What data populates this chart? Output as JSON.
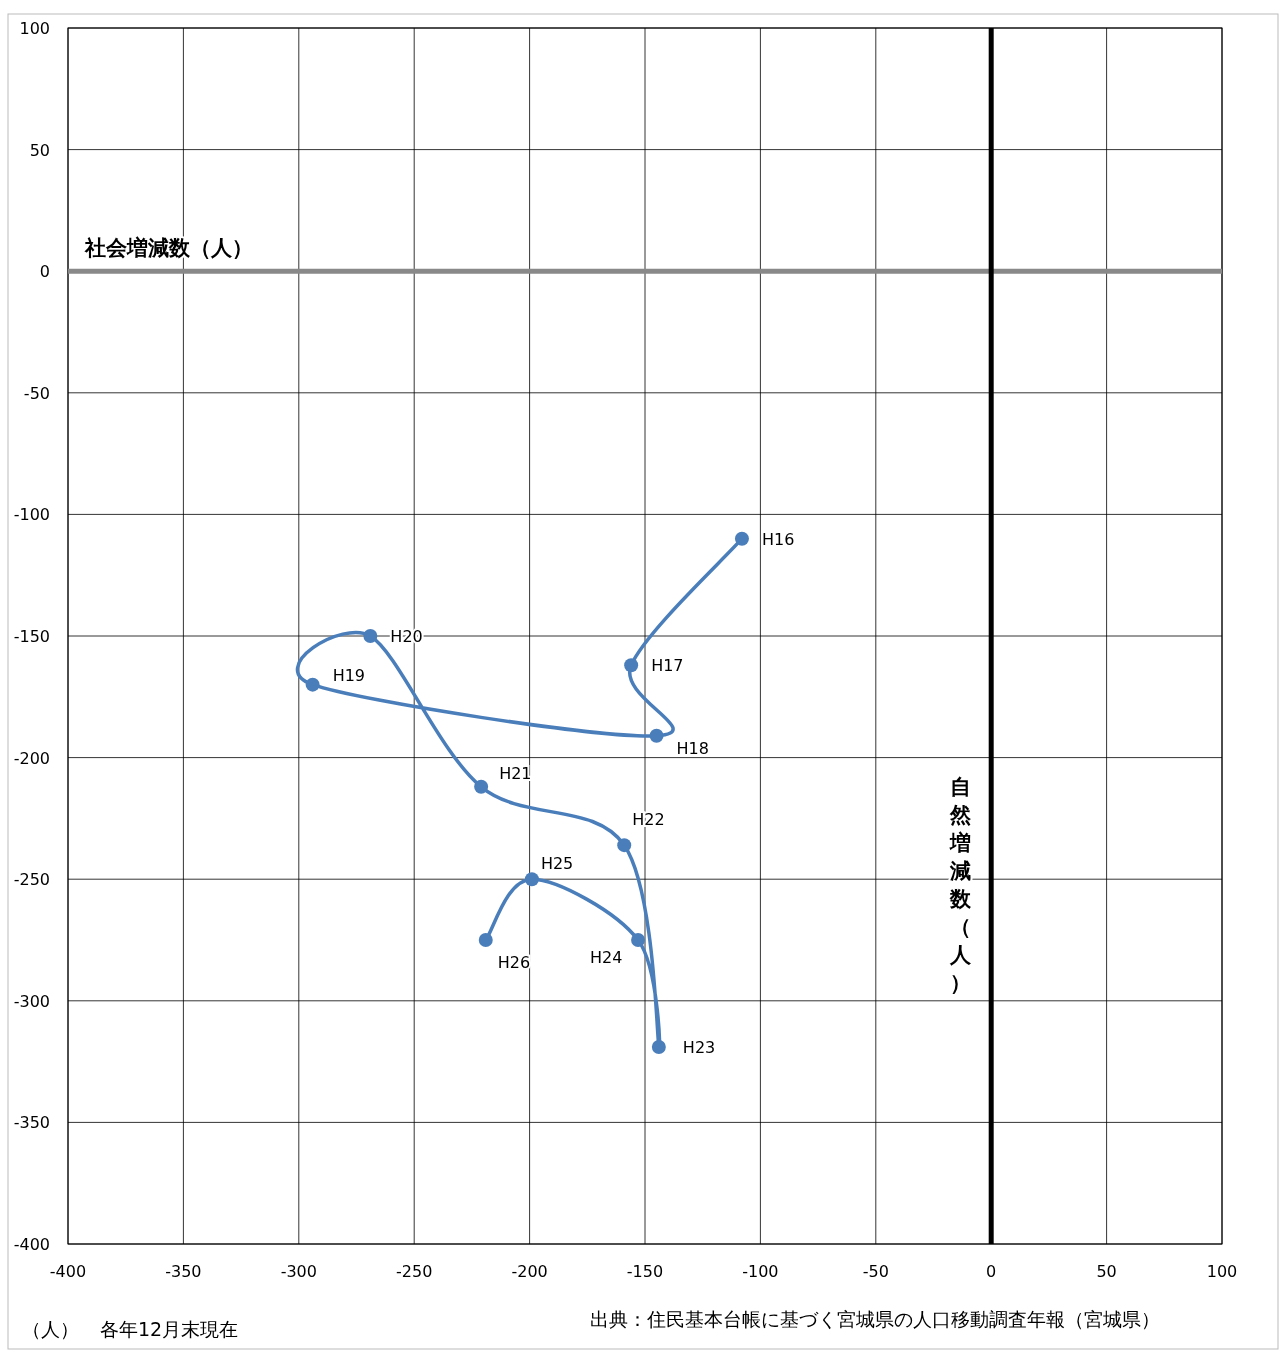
{
  "chart_data": {
    "type": "line",
    "marker": "circle",
    "grid": true,
    "x": [
      -108,
      -156,
      -145,
      -294,
      -269,
      -221,
      -159,
      -144,
      -153,
      -199,
      -219
    ],
    "series": [
      {
        "color": "#4a7ebb",
        "values": [
          -110,
          -162,
          -191,
          -170,
          -150,
          -212,
          -236,
          -319,
          -275,
          -250,
          -275
        ]
      }
    ],
    "xlim": [
      -400,
      100
    ],
    "ylim": [
      -400,
      100
    ],
    "xticks": [
      -400,
      -350,
      -300,
      -250,
      -200,
      -150,
      -100,
      -50,
      0,
      50,
      100
    ],
    "yticks": [
      -400,
      -350,
      -300,
      -250,
      -200,
      -150,
      -100,
      -50,
      0,
      50,
      100
    ],
    "ref_lines": [
      {
        "axis": "y",
        "value": 0,
        "label": "社会増減数（人）",
        "color": "#898989"
      },
      {
        "axis": "x",
        "value": 0,
        "label": "自然増減数（人）",
        "color": "#000000"
      }
    ],
    "annotations": [
      {
        "text": "H16",
        "x": -108,
        "y": -110
      },
      {
        "text": "H17",
        "x": -156,
        "y": -162
      },
      {
        "text": "H18",
        "x": -145,
        "y": -191
      },
      {
        "text": "H19",
        "x": -294,
        "y": -170
      },
      {
        "text": "H20",
        "x": -269,
        "y": -150
      },
      {
        "text": "H21",
        "x": -221,
        "y": -212
      },
      {
        "text": "H22",
        "x": -159,
        "y": -236
      },
      {
        "text": "H23",
        "x": -144,
        "y": -319
      },
      {
        "text": "H24",
        "x": -153,
        "y": -275
      },
      {
        "text": "H25",
        "x": -199,
        "y": -250
      },
      {
        "text": "H26",
        "x": -219,
        "y": -275
      },
      "（人）",
      "各年12月末現在",
      "出典：住民基本台帳に基づく宮城県の人口移動調査年報（宮城県）"
    ]
  }
}
